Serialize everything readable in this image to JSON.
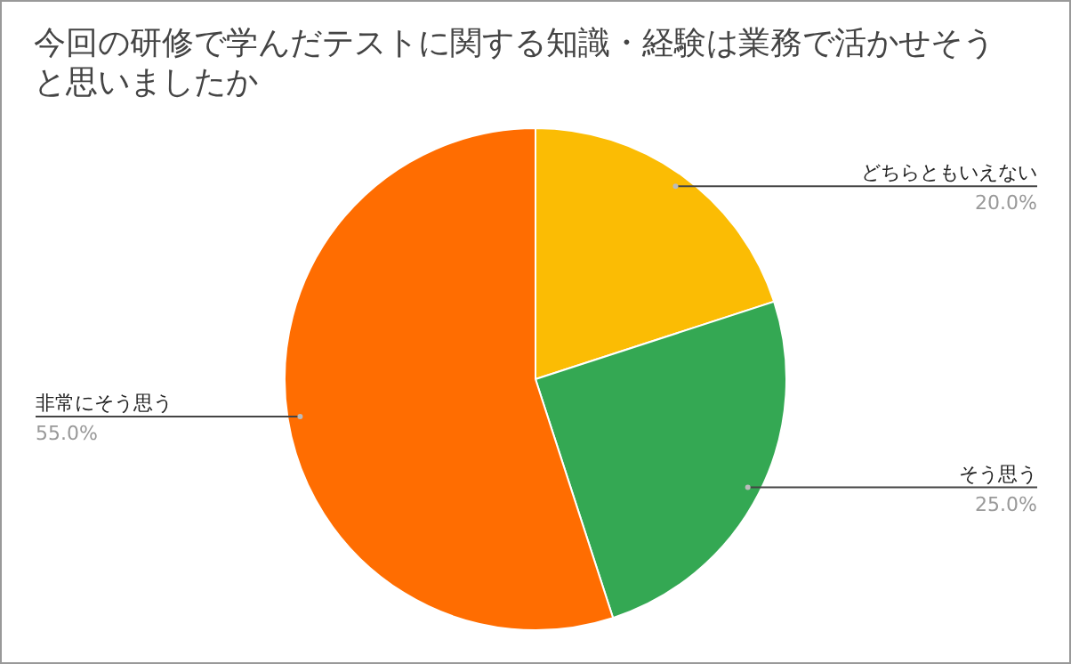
{
  "chart_data": {
    "type": "pie",
    "title": "今回の研修で学んだテストに関する知識・経験は業務で活かせそうと思いましたか",
    "categories": [
      "どちらともいえない",
      "そう思う",
      "非常にそう思う"
    ],
    "values": [
      20,
      25,
      55
    ],
    "colors": [
      "#fbbc04",
      "#34a853",
      "#ff6d01"
    ],
    "value_labels": [
      "20.0%",
      "25.0%",
      "55.0%"
    ]
  }
}
